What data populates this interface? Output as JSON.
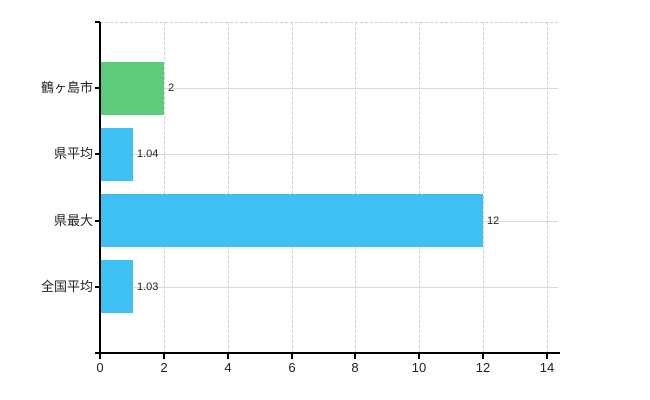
{
  "chart_data": {
    "type": "bar",
    "orientation": "horizontal",
    "title": "",
    "xlabel": "",
    "ylabel": "",
    "categories": [
      "鶴ヶ島市",
      "県平均",
      "県最大",
      "全国平均"
    ],
    "values": [
      2,
      1.04,
      12,
      1.03
    ],
    "value_labels": [
      "2",
      "1.04",
      "12",
      "1.03"
    ],
    "bar_colors": [
      "#5eca7c",
      "#3ec1f2",
      "#3ec1f2",
      "#3ec1f2"
    ],
    "xlim": [
      0,
      14
    ],
    "x_tick_values": [
      0,
      2,
      4,
      6,
      8,
      10,
      12,
      14
    ],
    "x_tick_labels": [
      "0",
      "2",
      "4",
      "6",
      "8",
      "10",
      "12",
      "14"
    ],
    "grid": true,
    "legend": false,
    "colors": {
      "background": "#ffffff",
      "grid": "#d9d9d9",
      "axis": "#000000",
      "text": "#222222"
    }
  }
}
